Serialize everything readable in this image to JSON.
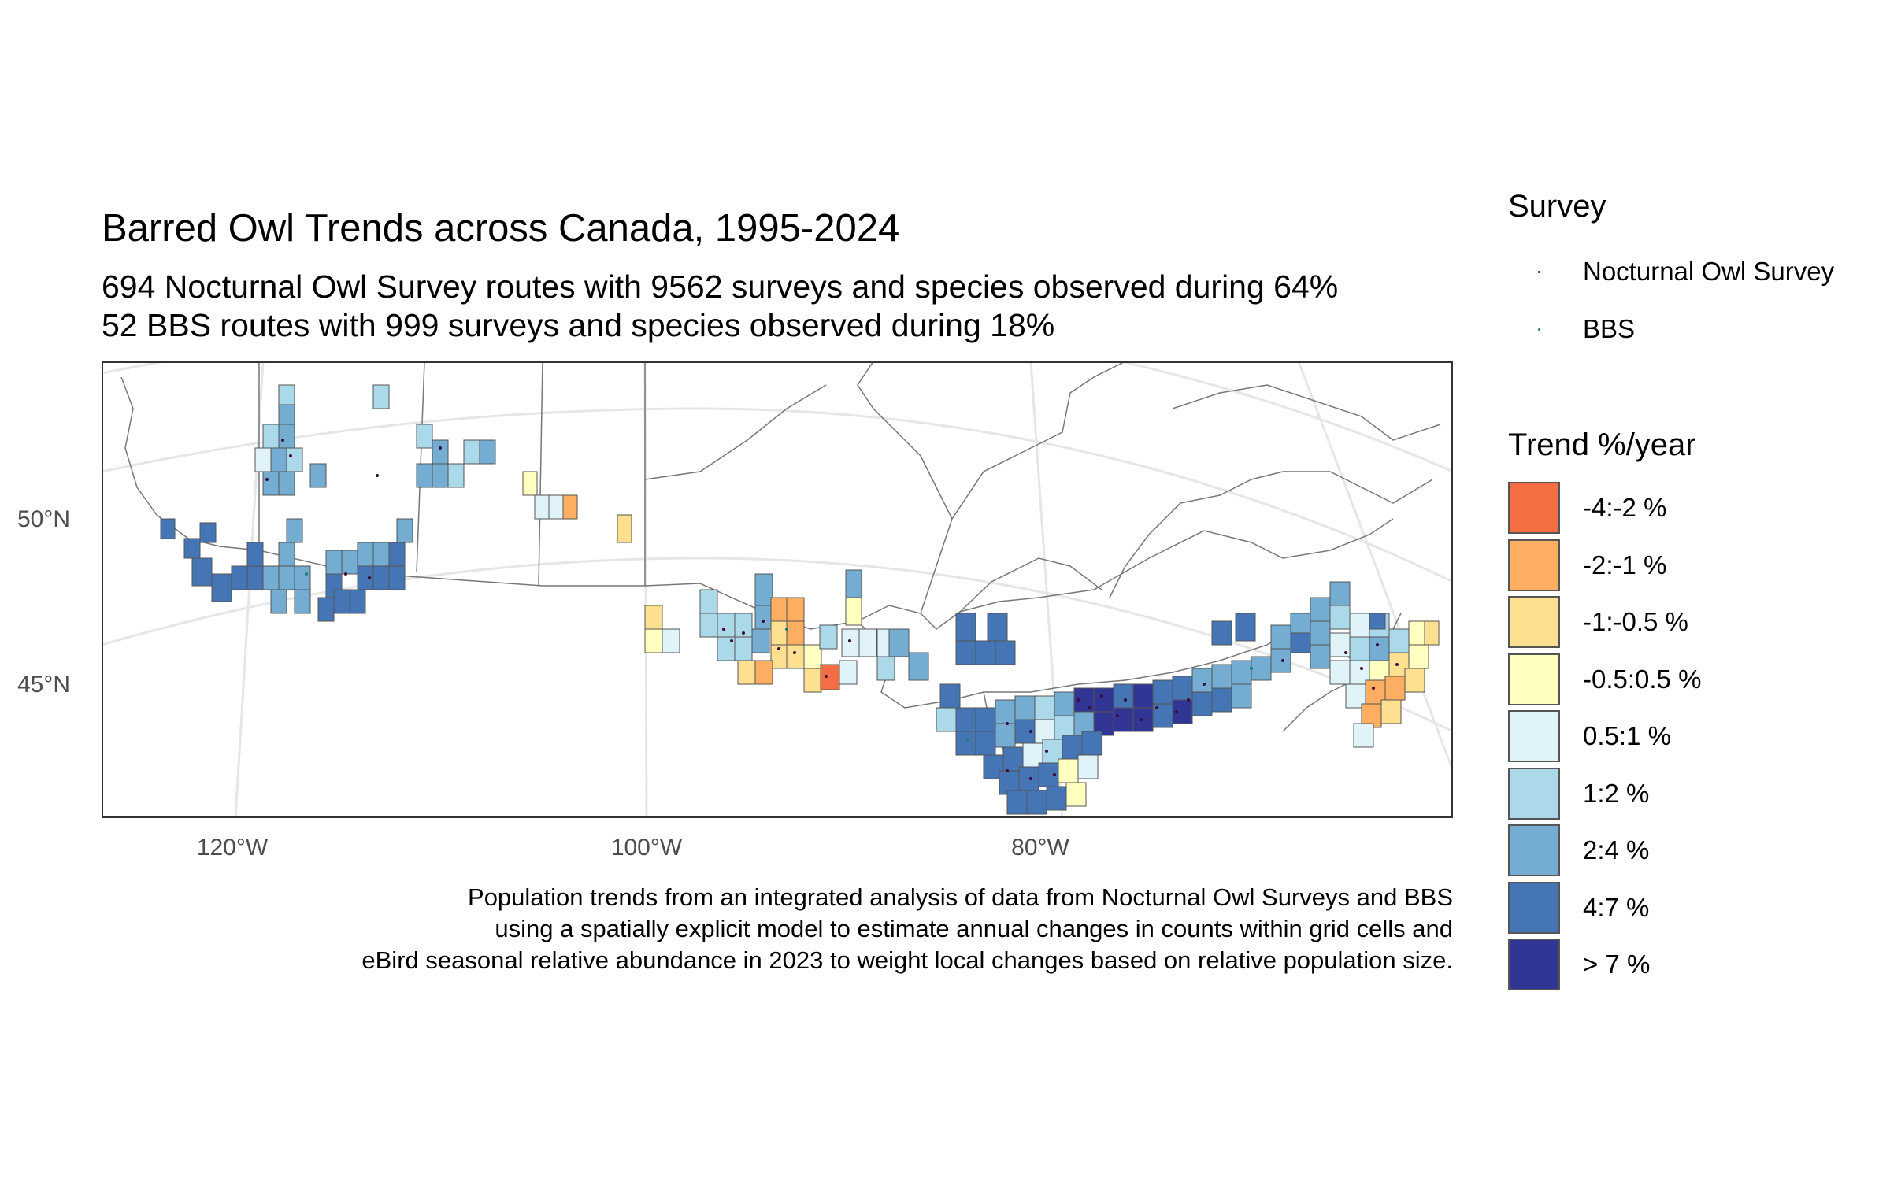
{
  "title": "Barred Owl Trends across Canada, 1995-2024",
  "subtitle_lines": [
    "694 Nocturnal Owl Survey routes with 9562 surveys and species observed during 64%",
    "52 BBS routes with 999 surveys and species observed during 18%"
  ],
  "axes": {
    "y_ticks": [
      "50°N",
      "45°N"
    ],
    "x_ticks": [
      "120°W",
      "100°W",
      "80°W"
    ]
  },
  "caption_lines": [
    "Population trends from an integrated analysis of data from Nocturnal Owl Surveys and BBS",
    "using a spatially explicit model to estimate annual changes in counts within grid cells and",
    "eBird seasonal relative abundance in 2023 to weight local changes based on relative population size."
  ],
  "legend_survey": {
    "title": "Survey",
    "items": [
      {
        "label": "Nocturnal Owl Survey",
        "color": "#3a0a3a"
      },
      {
        "label": "BBS",
        "color": "#1a7a7a"
      }
    ]
  },
  "legend_trend": {
    "title": "Trend %/year",
    "items": [
      {
        "label": "-4:-2 %",
        "color": "#f46d43"
      },
      {
        "label": "-2:-1 %",
        "color": "#fdae61"
      },
      {
        "label": "-1:-0.5 %",
        "color": "#fee090"
      },
      {
        "label": "-0.5:0.5 %",
        "color": "#ffffbf"
      },
      {
        "label": "0.5:1 %",
        "color": "#e0f3f8"
      },
      {
        "label": "1:2 %",
        "color": "#abd9e9"
      },
      {
        "label": "2:4 %",
        "color": "#74add1"
      },
      {
        "label": "4:7 %",
        "color": "#4575b4"
      },
      {
        "label": "> 7 %",
        "color": "#313695"
      }
    ]
  }
}
